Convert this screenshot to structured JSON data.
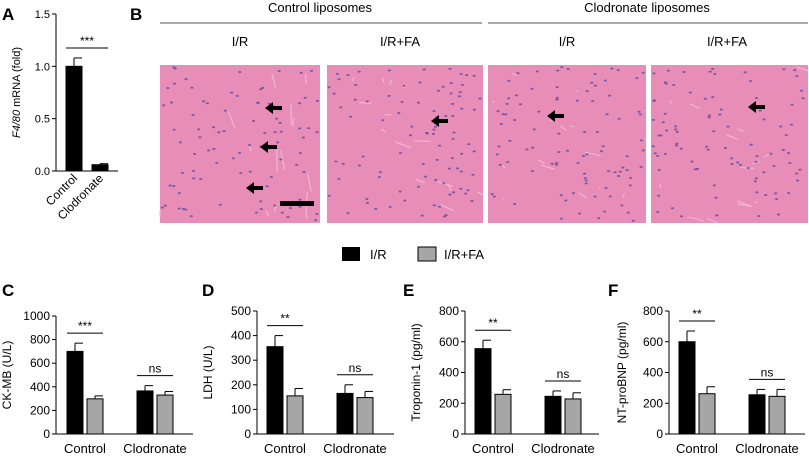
{
  "panel_letters": [
    "A",
    "B",
    "C",
    "D",
    "E",
    "F"
  ],
  "legend": {
    "items": [
      {
        "label": "I/R",
        "color": "#000000"
      },
      {
        "label": "I/R+FA",
        "color": "#a6a6a6"
      }
    ]
  },
  "panel_b": {
    "groups": [
      {
        "label": "Control liposomes"
      },
      {
        "label": "Clodronate liposomes"
      }
    ],
    "image_titles": [
      "I/R",
      "I/R+FA",
      "I/R",
      "I/R+FA"
    ],
    "tissue_color": "#e78db8",
    "nuclei_color": "#5c4a9e"
  },
  "chart_data": [
    {
      "panel": "A",
      "type": "bar",
      "categories": [
        "Control",
        "Clodronate"
      ],
      "series": [
        {
          "values": [
            1.0,
            0.06
          ],
          "errors": [
            0.08,
            0.01
          ]
        }
      ],
      "ylabel_italic": "F4/80",
      "ylabel_rest": " mRNA (fold)",
      "ylim": [
        0,
        1.5
      ],
      "yticks": [
        "0.0",
        "0.5",
        "1.0",
        "1.5"
      ],
      "significance": [
        {
          "label": "***"
        }
      ]
    },
    {
      "panel": "C",
      "type": "bar",
      "categories": [
        "Control",
        "Clodronate"
      ],
      "series": [
        {
          "name": "I/R",
          "values": [
            700,
            365
          ],
          "errors": [
            70,
            45
          ]
        },
        {
          "name": "I/R+FA",
          "values": [
            298,
            330
          ],
          "errors": [
            25,
            30
          ]
        }
      ],
      "ylabel": "CK-MB (U/L)",
      "ylim": [
        0,
        1000
      ],
      "yticks": [
        "0",
        "200",
        "400",
        "600",
        "800",
        "1000"
      ],
      "significance": [
        {
          "label": "***"
        },
        {
          "label": "ns"
        }
      ]
    },
    {
      "panel": "D",
      "type": "bar",
      "categories": [
        "Control",
        "Clodronate"
      ],
      "series": [
        {
          "name": "I/R",
          "values": [
            355,
            165
          ],
          "errors": [
            45,
            35
          ]
        },
        {
          "name": "I/R+FA",
          "values": [
            155,
            148
          ],
          "errors": [
            30,
            25
          ]
        }
      ],
      "ylabel": "LDH (U/L)",
      "ylim": [
        0,
        500
      ],
      "yticks": [
        "0",
        "100",
        "200",
        "300",
        "400",
        "500"
      ],
      "significance": [
        {
          "label": "**"
        },
        {
          "label": "ns"
        }
      ]
    },
    {
      "panel": "E",
      "type": "bar",
      "categories": [
        "Control",
        "Clodronate"
      ],
      "series": [
        {
          "name": "I/R",
          "values": [
            555,
            245
          ],
          "errors": [
            55,
            35
          ]
        },
        {
          "name": "I/R+FA",
          "values": [
            258,
            228
          ],
          "errors": [
            30,
            40
          ]
        }
      ],
      "ylabel": "Troponin-1 (pg/ml)",
      "ylim": [
        0,
        800
      ],
      "yticks": [
        "0",
        "200",
        "400",
        "600",
        "800"
      ],
      "significance": [
        {
          "label": "**"
        },
        {
          "label": "ns"
        }
      ]
    },
    {
      "panel": "F",
      "type": "bar",
      "categories": [
        "Control",
        "Clodronate"
      ],
      "series": [
        {
          "name": "I/R",
          "values": [
            600,
            255
          ],
          "errors": [
            70,
            35
          ]
        },
        {
          "name": "I/R+FA",
          "values": [
            262,
            245
          ],
          "errors": [
            45,
            45
          ]
        }
      ],
      "ylabel": "NT-proBNP (pg/ml)",
      "ylim": [
        0,
        800
      ],
      "yticks": [
        "0",
        "200",
        "400",
        "600",
        "800"
      ],
      "significance": [
        {
          "label": "**"
        },
        {
          "label": "ns"
        }
      ]
    }
  ]
}
